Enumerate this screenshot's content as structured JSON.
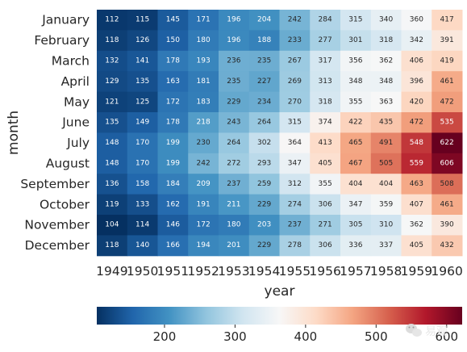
{
  "chart_data": {
    "type": "heatmap",
    "title": "",
    "xlabel": "year",
    "ylabel": "month",
    "x": [
      "1949",
      "1950",
      "1951",
      "1952",
      "1953",
      "1954",
      "1955",
      "1956",
      "1957",
      "1958",
      "1959",
      "1960"
    ],
    "y": [
      "January",
      "February",
      "March",
      "April",
      "May",
      "June",
      "July",
      "August",
      "September",
      "October",
      "November",
      "December"
    ],
    "values": [
      [
        112,
        115,
        145,
        171,
        196,
        204,
        242,
        284,
        315,
        340,
        360,
        417
      ],
      [
        118,
        126,
        150,
        180,
        196,
        188,
        233,
        277,
        301,
        318,
        342,
        391
      ],
      [
        132,
        141,
        178,
        193,
        236,
        235,
        267,
        317,
        356,
        362,
        406,
        419
      ],
      [
        129,
        135,
        163,
        181,
        235,
        227,
        269,
        313,
        348,
        348,
        396,
        461
      ],
      [
        121,
        125,
        172,
        183,
        229,
        234,
        270,
        318,
        355,
        363,
        420,
        472
      ],
      [
        135,
        149,
        178,
        218,
        243,
        264,
        315,
        374,
        422,
        435,
        472,
        535
      ],
      [
        148,
        170,
        199,
        230,
        264,
        302,
        364,
        413,
        465,
        491,
        548,
        622
      ],
      [
        148,
        170,
        199,
        242,
        272,
        293,
        347,
        405,
        467,
        505,
        559,
        606
      ],
      [
        136,
        158,
        184,
        209,
        237,
        259,
        312,
        355,
        404,
        404,
        463,
        508
      ],
      [
        119,
        133,
        162,
        191,
        211,
        229,
        274,
        306,
        347,
        359,
        407,
        461
      ],
      [
        104,
        114,
        146,
        172,
        180,
        203,
        237,
        271,
        305,
        310,
        362,
        390
      ],
      [
        118,
        140,
        166,
        194,
        201,
        229,
        278,
        306,
        336,
        337,
        405,
        432
      ]
    ],
    "colormap": "RdBu_r",
    "vmin": 104,
    "vmax": 622,
    "colorbar": {
      "orientation": "horizontal",
      "ticks": [
        "200",
        "300",
        "400",
        "500",
        "600"
      ]
    }
  },
  "watermark": {
    "text": "易观",
    "icon": "wechat-icon"
  }
}
